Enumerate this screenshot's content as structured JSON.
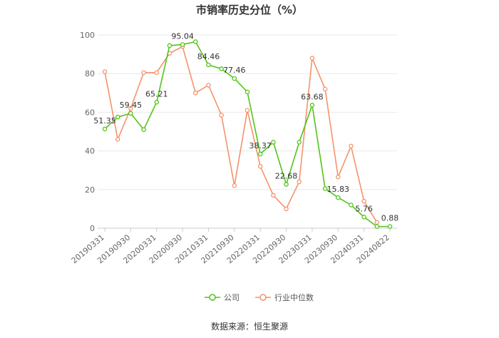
{
  "chart_data": {
    "type": "line",
    "title": "市销率历史分位（%）",
    "x": [
      "20190331",
      "20190630",
      "20190930",
      "20191231",
      "20200331",
      "20200630",
      "20200930",
      "20201231",
      "20210331",
      "20210630",
      "20210930",
      "20211231",
      "20220331",
      "20220630",
      "20220930",
      "20221231",
      "20230331",
      "20230630",
      "20230930",
      "20231231",
      "20240331",
      "20240630",
      "20240822"
    ],
    "xtick_labels": [
      "20190331",
      "20190930",
      "20200331",
      "20200930",
      "20210331",
      "20210930",
      "20220331",
      "20220930",
      "20230331",
      "20230930",
      "20240331",
      "20240822"
    ],
    "ylim": [
      0,
      100
    ],
    "yticks": [
      0,
      20,
      40,
      60,
      80,
      100
    ],
    "grid": true,
    "legend": "bottom-center",
    "series": [
      {
        "name": "公司",
        "color": "#52c41a",
        "values": [
          51.35,
          57.5,
          59.45,
          51.0,
          65.21,
          94.5,
          95.04,
          96.5,
          84.46,
          82.5,
          77.46,
          70.5,
          38.37,
          44.5,
          22.68,
          44.5,
          63.68,
          20.5,
          15.83,
          12.0,
          5.76,
          0.88,
          0.88
        ],
        "point_labels": [
          {
            "index": 0,
            "text": "51.35"
          },
          {
            "index": 2,
            "text": "59.45"
          },
          {
            "index": 4,
            "text": "65.21"
          },
          {
            "index": 6,
            "text": "95.04"
          },
          {
            "index": 8,
            "text": "84.46"
          },
          {
            "index": 10,
            "text": "77.46"
          },
          {
            "index": 12,
            "text": "38.37"
          },
          {
            "index": 14,
            "text": "22.68"
          },
          {
            "index": 16,
            "text": "63.68"
          },
          {
            "index": 18,
            "text": "15.83"
          },
          {
            "index": 20,
            "text": "5.76"
          },
          {
            "index": 22,
            "text": "0.88"
          }
        ]
      },
      {
        "name": "行业中位数",
        "color": "#f4936c",
        "values": [
          81,
          46,
          62,
          80.5,
          80.5,
          90.5,
          94,
          70,
          74,
          58.5,
          22,
          61,
          32,
          17,
          10,
          24,
          88,
          72,
          26.5,
          42.5,
          14,
          3,
          null
        ]
      }
    ]
  },
  "source": "数据来源：恒生聚源"
}
